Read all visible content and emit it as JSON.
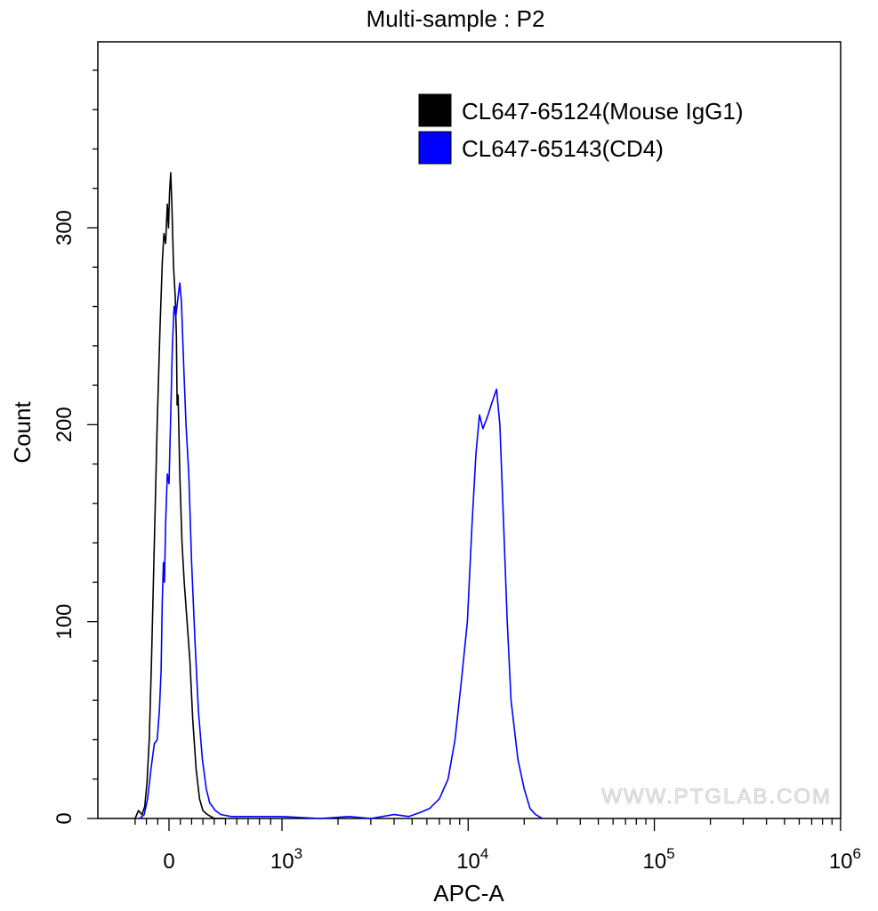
{
  "chart_data": {
    "type": "line",
    "title": "Multi-sample : P2",
    "xlabel": "APC-A",
    "ylabel": "Count",
    "x_scale": "biexponential",
    "y_range": [
      0,
      380
    ],
    "y_ticks": [
      "0",
      "100",
      "200",
      "300"
    ],
    "x_ticks": [
      {
        "value": 0,
        "base": "0",
        "exp": ""
      },
      {
        "value": 1000,
        "base": "10",
        "exp": "3"
      },
      {
        "value": 10000,
        "base": "10",
        "exp": "4"
      },
      {
        "value": 100000,
        "base": "10",
        "exp": "5"
      },
      {
        "value": 1000000,
        "base": "10",
        "exp": "6"
      }
    ],
    "legend_position": "top-right",
    "watermark": "WWW.PTGLAB.COM",
    "series": [
      {
        "name": "CL647-65124(Mouse IgG1)",
        "color": "#000000",
        "points": [
          [
            -300,
            0
          ],
          [
            -270,
            4
          ],
          [
            -240,
            2
          ],
          [
            -215,
            6
          ],
          [
            -195,
            18
          ],
          [
            -175,
            40
          ],
          [
            -155,
            80
          ],
          [
            -130,
            140
          ],
          [
            -105,
            200
          ],
          [
            -80,
            248
          ],
          [
            -60,
            282
          ],
          [
            -45,
            297
          ],
          [
            -30,
            292
          ],
          [
            -15,
            312
          ],
          [
            -5,
            300
          ],
          [
            5,
            318
          ],
          [
            15,
            328
          ],
          [
            25,
            312
          ],
          [
            40,
            280
          ],
          [
            55,
            265
          ],
          [
            65,
            245
          ],
          [
            72,
            210
          ],
          [
            80,
            215
          ],
          [
            95,
            175
          ],
          [
            115,
            140
          ],
          [
            135,
            120
          ],
          [
            160,
            100
          ],
          [
            185,
            80
          ],
          [
            210,
            50
          ],
          [
            240,
            25
          ],
          [
            270,
            10
          ],
          [
            300,
            4
          ],
          [
            340,
            2
          ],
          [
            400,
            0
          ],
          [
            500,
            0
          ]
        ]
      },
      {
        "name": "CL647-65143(CD4)",
        "color": "#0000ff",
        "points": [
          [
            -260,
            0
          ],
          [
            -220,
            2
          ],
          [
            -190,
            10
          ],
          [
            -160,
            25
          ],
          [
            -130,
            38
          ],
          [
            -105,
            40
          ],
          [
            -85,
            55
          ],
          [
            -70,
            75
          ],
          [
            -60,
            110
          ],
          [
            -50,
            130
          ],
          [
            -40,
            120
          ],
          [
            -30,
            150
          ],
          [
            -15,
            175
          ],
          [
            0,
            170
          ],
          [
            15,
            205
          ],
          [
            30,
            240
          ],
          [
            45,
            260
          ],
          [
            60,
            255
          ],
          [
            80,
            265
          ],
          [
            95,
            272
          ],
          [
            110,
            262
          ],
          [
            130,
            230
          ],
          [
            150,
            200
          ],
          [
            175,
            175
          ],
          [
            200,
            130
          ],
          [
            230,
            90
          ],
          [
            260,
            55
          ],
          [
            295,
            30
          ],
          [
            330,
            15
          ],
          [
            360,
            8
          ],
          [
            410,
            4
          ],
          [
            460,
            2
          ],
          [
            550,
            1
          ],
          [
            700,
            1
          ],
          [
            1000,
            1
          ],
          [
            1600,
            0
          ],
          [
            2300,
            1
          ],
          [
            3000,
            0
          ],
          [
            4000,
            2
          ],
          [
            4800,
            1
          ],
          [
            5500,
            3
          ],
          [
            6200,
            5
          ],
          [
            7000,
            10
          ],
          [
            7800,
            20
          ],
          [
            8500,
            40
          ],
          [
            9200,
            70
          ],
          [
            9900,
            100
          ],
          [
            10500,
            150
          ],
          [
            11000,
            185
          ],
          [
            11500,
            205
          ],
          [
            12000,
            198
          ],
          [
            12800,
            205
          ],
          [
            13500,
            212
          ],
          [
            14200,
            218
          ],
          [
            14800,
            200
          ],
          [
            15500,
            150
          ],
          [
            16200,
            100
          ],
          [
            17000,
            60
          ],
          [
            18500,
            30
          ],
          [
            20000,
            15
          ],
          [
            21500,
            5
          ],
          [
            23000,
            2
          ],
          [
            25000,
            0
          ]
        ]
      }
    ]
  }
}
